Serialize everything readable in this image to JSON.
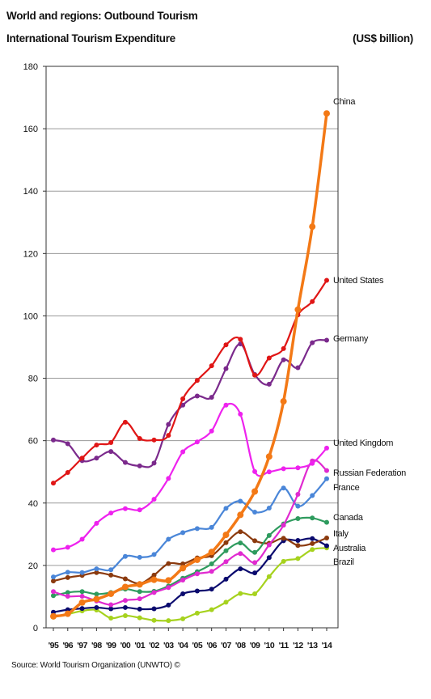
{
  "header": {
    "title": "World and regions: Outbound Tourism",
    "subtitle": "International Tourism Expenditure",
    "unit": "(US$ billion)"
  },
  "source": "Source: World Tourism Organization (UNWTO) ©",
  "chart_data": {
    "type": "line",
    "title": "World and regions: Outbound Tourism",
    "subtitle": "International Tourism Expenditure",
    "ylabel": "(US$ billion)",
    "xlabel": "",
    "ylim": [
      0,
      180
    ],
    "yticks": [
      0,
      20,
      40,
      60,
      80,
      100,
      120,
      140,
      160,
      180
    ],
    "grid": true,
    "legend": "inline labels at right end of lines",
    "categories": [
      "'95",
      "'96",
      "'97",
      "'98",
      "'99",
      "'00",
      "'01",
      "'02",
      "'03",
      "'04",
      "'05",
      "'06",
      "'07",
      "'08",
      "'09",
      "'10",
      "'11",
      "'12",
      "'13",
      "'14"
    ],
    "series": [
      {
        "name": "Brazil",
        "color": "#a6d21e",
        "values": [
          3.4,
          4.4,
          5.4,
          5.7,
          3.1,
          3.9,
          3.2,
          2.4,
          2.3,
          2.9,
          4.7,
          5.8,
          8.2,
          11.0,
          10.9,
          16.4,
          21.3,
          22.2,
          25.1,
          25.6
        ]
      },
      {
        "name": "Australia",
        "color": "#0a0a6e",
        "values": [
          5.0,
          5.8,
          6.2,
          6.5,
          6.1,
          6.5,
          6.0,
          6.1,
          7.3,
          10.9,
          11.8,
          12.4,
          15.6,
          18.9,
          17.6,
          22.5,
          27.9,
          28.0,
          28.6,
          26.3
        ]
      },
      {
        "name": "Italy",
        "color": "#8b3a0e",
        "values": [
          15.0,
          16.1,
          16.8,
          17.7,
          16.9,
          15.7,
          14.2,
          16.9,
          20.6,
          20.5,
          22.4,
          23.1,
          27.3,
          30.8,
          27.9,
          27.1,
          28.7,
          26.4,
          27.0,
          28.8
        ]
      },
      {
        "name": "Canada",
        "color": "#2e9b5e",
        "values": [
          10.3,
          11.3,
          11.6,
          10.8,
          11.3,
          12.4,
          11.6,
          11.7,
          13.4,
          15.9,
          18.0,
          20.5,
          24.7,
          27.2,
          24.2,
          29.6,
          33.3,
          35.0,
          35.2,
          33.8
        ]
      },
      {
        "name": "France",
        "color": "#4a86d8",
        "values": [
          16.3,
          17.8,
          17.7,
          18.9,
          18.6,
          22.9,
          22.6,
          23.5,
          28.4,
          30.5,
          31.8,
          32.2,
          38.3,
          40.6,
          37.1,
          38.4,
          44.8,
          39.0,
          42.4,
          47.8
        ]
      },
      {
        "name": "Russian Federation",
        "color": "#e02ad0",
        "values": [
          11.6,
          10.1,
          10.1,
          8.6,
          7.4,
          8.8,
          9.3,
          11.3,
          12.9,
          15.3,
          17.3,
          18.1,
          21.2,
          23.8,
          20.9,
          26.6,
          32.9,
          42.8,
          53.5,
          50.4
        ]
      },
      {
        "name": "United Kingdom",
        "color": "#ee22ee",
        "values": [
          25.0,
          25.8,
          28.4,
          33.5,
          36.8,
          38.2,
          37.8,
          41.2,
          47.9,
          56.4,
          59.6,
          63.1,
          71.4,
          68.5,
          50.1,
          50.0,
          51.0,
          51.3,
          52.7,
          57.6
        ]
      },
      {
        "name": "Germany",
        "color": "#7b2a8c",
        "values": [
          60.2,
          59.0,
          53.6,
          54.4,
          56.5,
          53.0,
          51.9,
          52.8,
          65.2,
          71.4,
          74.3,
          73.9,
          83.1,
          91.0,
          81.2,
          78.1,
          85.9,
          83.4,
          91.4,
          92.2
        ]
      },
      {
        "name": "United States",
        "color": "#e01616",
        "values": [
          46.4,
          49.8,
          54.4,
          58.6,
          59.4,
          65.9,
          60.7,
          60.2,
          61.7,
          73.4,
          79.3,
          84.0,
          90.7,
          92.5,
          81.0,
          86.5,
          89.5,
          100.3,
          104.6,
          111.4
        ]
      },
      {
        "name": "China",
        "color": "#f37916",
        "values": [
          3.7,
          4.5,
          8.1,
          9.2,
          10.9,
          13.1,
          13.9,
          15.4,
          15.2,
          19.1,
          21.8,
          24.3,
          29.8,
          36.2,
          43.7,
          54.9,
          72.6,
          102.0,
          128.6,
          164.9
        ]
      }
    ]
  }
}
